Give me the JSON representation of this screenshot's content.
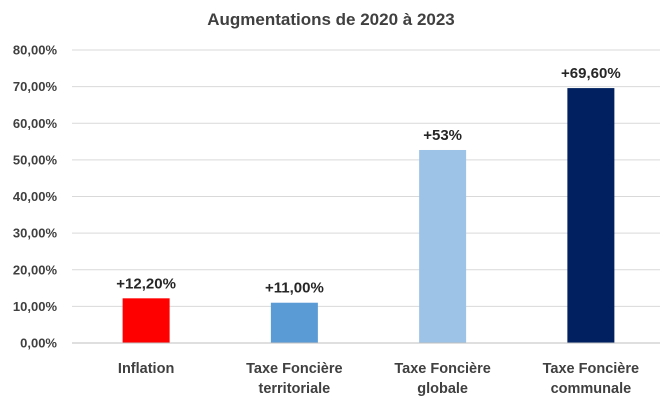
{
  "chart_data": {
    "type": "bar",
    "title": "Augmentations de 2020 à 2023",
    "xlabel": "",
    "ylabel": "",
    "ylim": [
      0,
      80
    ],
    "grid": true,
    "legend": "none",
    "y_ticks": [
      "0,00%",
      "10,00%",
      "20,00%",
      "30,00%",
      "40,00%",
      "50,00%",
      "60,00%",
      "70,00%",
      "80,00%"
    ],
    "categories": [
      [
        "Inflation"
      ],
      [
        "Taxe Foncière",
        "territoriale"
      ],
      [
        "Taxe Foncière",
        "globale"
      ],
      [
        "Taxe Foncière",
        "communale"
      ]
    ],
    "values": [
      12.2,
      11.0,
      52.7,
      69.6
    ],
    "data_labels": [
      "+12,20%",
      "+11,00%",
      "+53%",
      "+69,60%"
    ],
    "colors": [
      "#ff0000",
      "#5b9bd5",
      "#9dc3e6",
      "#002060"
    ]
  }
}
